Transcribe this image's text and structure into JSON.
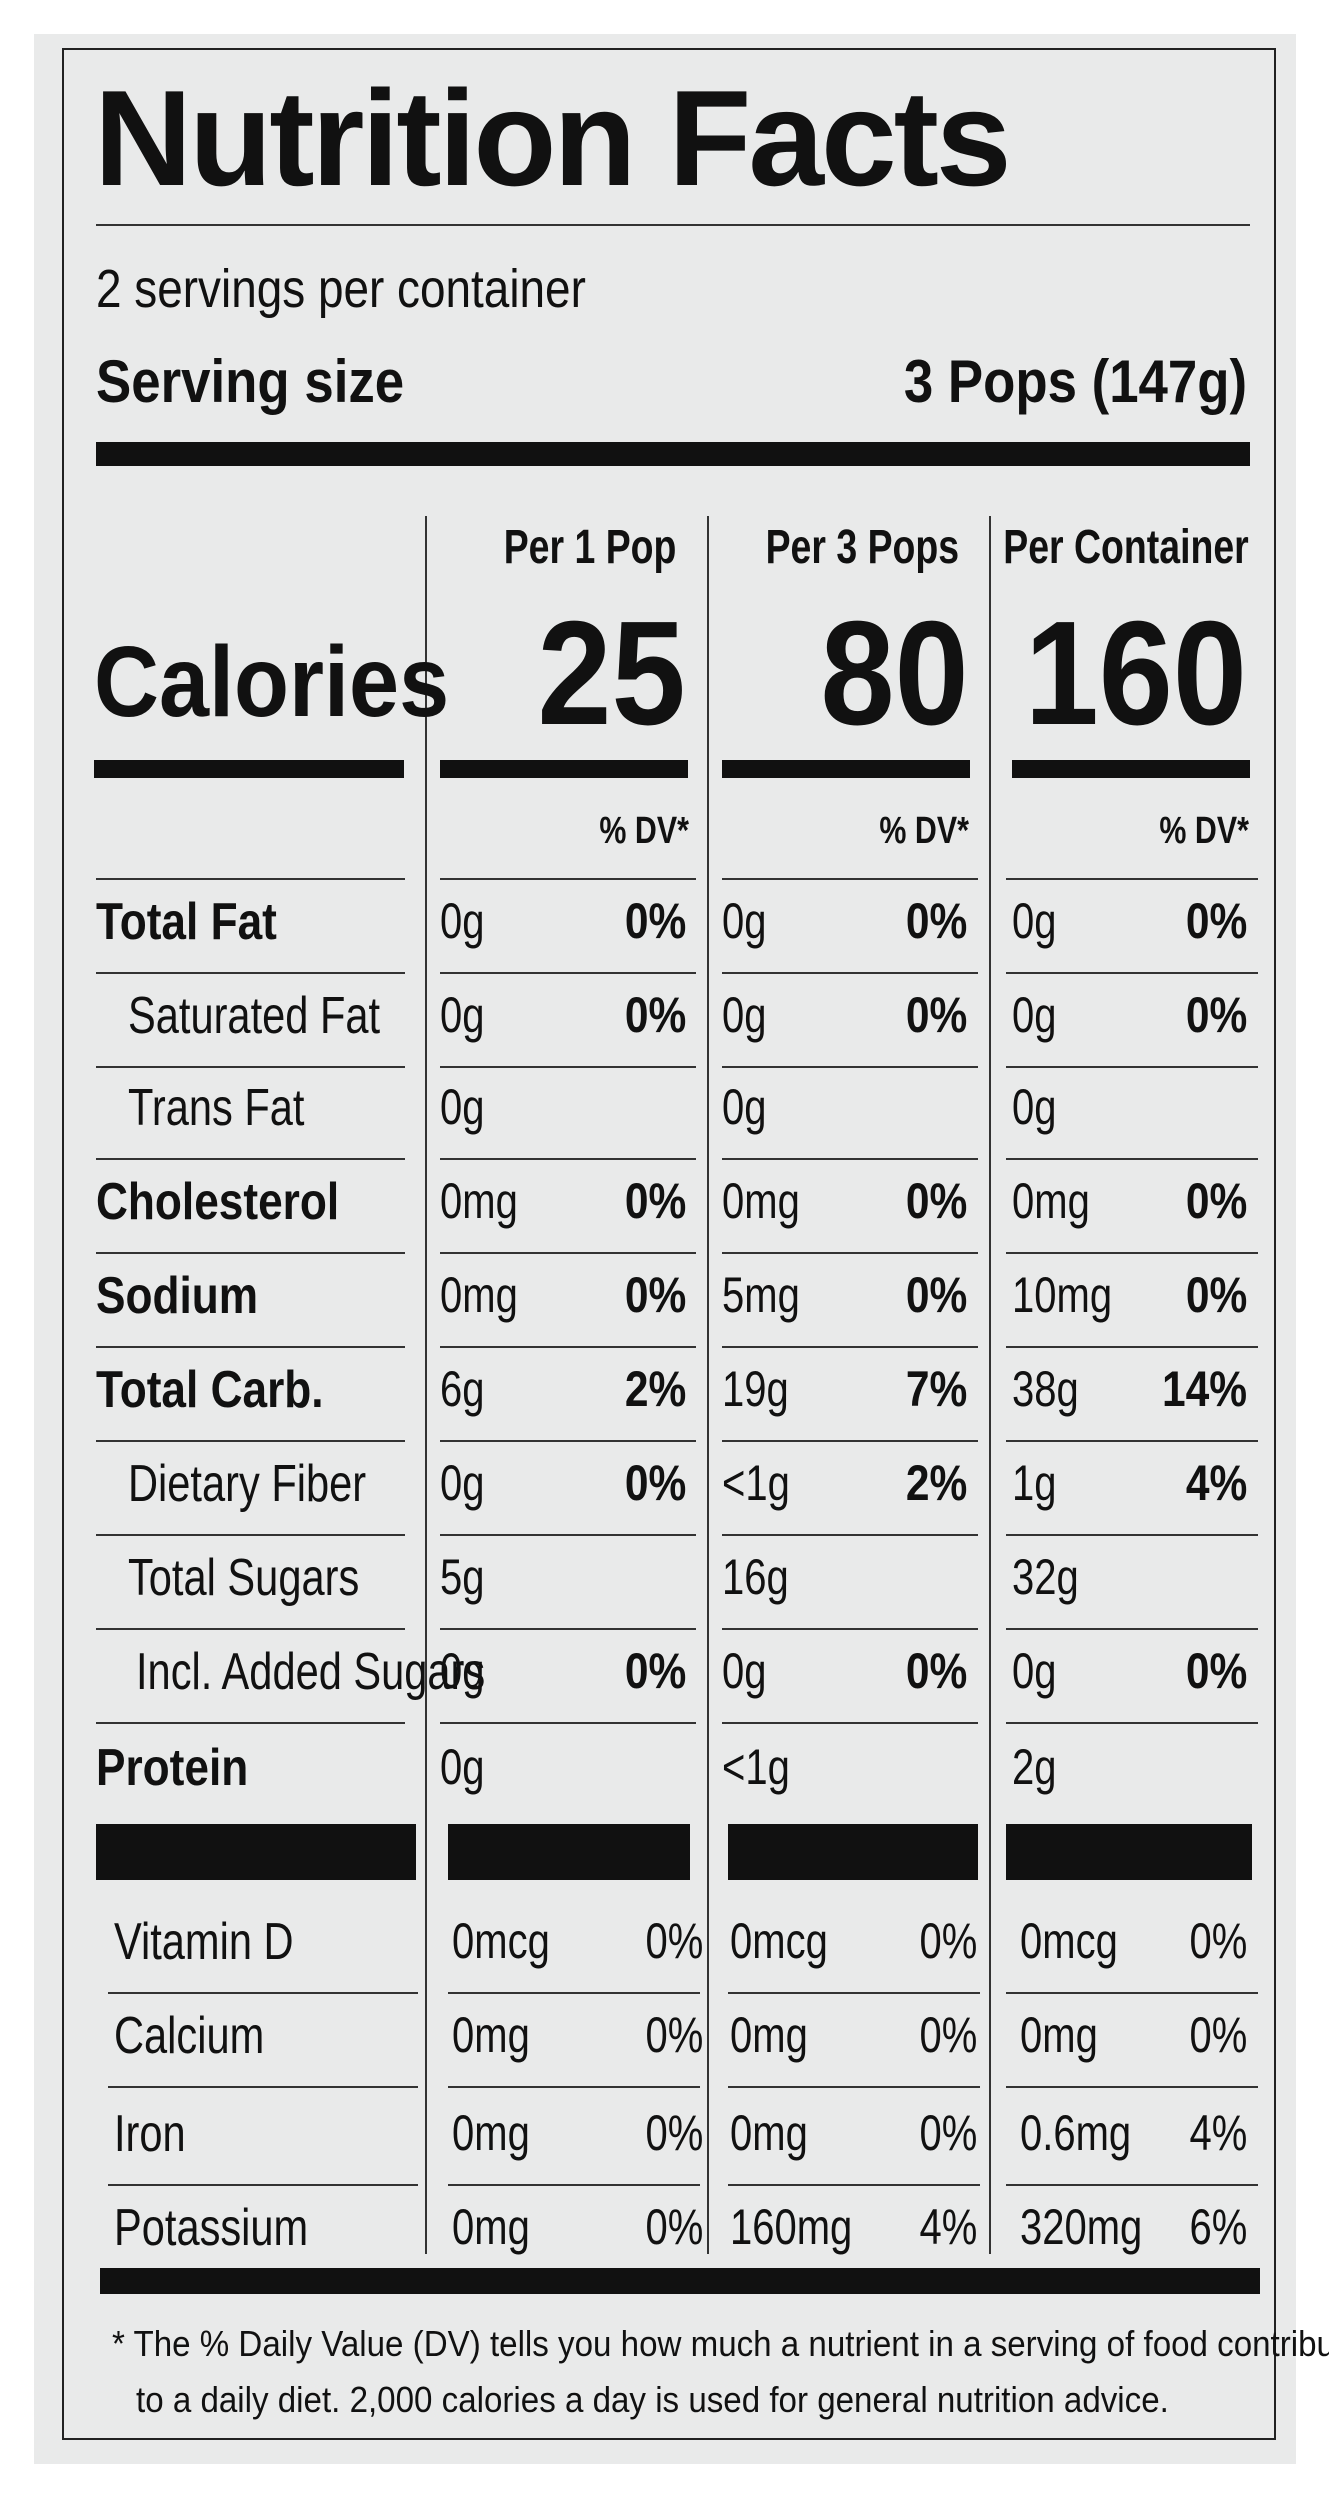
{
  "title": "Nutrition Facts",
  "servings_per_container": "2 servings per container",
  "serving_size": {
    "label": "Serving size",
    "value": "3 Pops (147g)"
  },
  "columns": [
    "Per 1 Pop",
    "Per 3 Pops",
    "Per Container"
  ],
  "calories": {
    "label": "Calories",
    "values": [
      "25",
      "80",
      "160"
    ]
  },
  "dv_header": "% DV*",
  "nutrients": [
    {
      "name": "Total Fat",
      "bold": true,
      "indent": 0,
      "values": [
        [
          "0g",
          "0%"
        ],
        [
          "0g",
          "0%"
        ],
        [
          "0g",
          "0%"
        ]
      ]
    },
    {
      "name": "Saturated Fat",
      "bold": false,
      "indent": 1,
      "values": [
        [
          "0g",
          "0%"
        ],
        [
          "0g",
          "0%"
        ],
        [
          "0g",
          "0%"
        ]
      ]
    },
    {
      "name": "Trans Fat",
      "bold": false,
      "indent": 1,
      "values": [
        [
          "0g",
          ""
        ],
        [
          "0g",
          ""
        ],
        [
          "0g",
          ""
        ]
      ]
    },
    {
      "name": "Cholesterol",
      "bold": true,
      "indent": 0,
      "values": [
        [
          "0mg",
          "0%"
        ],
        [
          "0mg",
          "0%"
        ],
        [
          "0mg",
          "0%"
        ]
      ]
    },
    {
      "name": "Sodium",
      "bold": true,
      "indent": 0,
      "values": [
        [
          "0mg",
          "0%"
        ],
        [
          "5mg",
          "0%"
        ],
        [
          "10mg",
          "0%"
        ]
      ]
    },
    {
      "name": "Total Carb.",
      "bold": true,
      "indent": 0,
      "values": [
        [
          "6g",
          "2%"
        ],
        [
          "19g",
          "7%"
        ],
        [
          "38g",
          "14%"
        ]
      ]
    },
    {
      "name": "Dietary Fiber",
      "bold": false,
      "indent": 1,
      "values": [
        [
          "0g",
          "0%"
        ],
        [
          "<1g",
          "2%"
        ],
        [
          "1g",
          "4%"
        ]
      ]
    },
    {
      "name": "Total Sugars",
      "bold": false,
      "indent": 1,
      "values": [
        [
          "5g",
          ""
        ],
        [
          "16g",
          ""
        ],
        [
          "32g",
          ""
        ]
      ]
    },
    {
      "name": "Incl. Added Sugars",
      "bold": false,
      "indent": 2,
      "values": [
        [
          "0g",
          "0%"
        ],
        [
          "0g",
          "0%"
        ],
        [
          "0g",
          "0%"
        ]
      ]
    },
    {
      "name": "Protein",
      "bold": true,
      "indent": 0,
      "values": [
        [
          "0g",
          ""
        ],
        [
          "<1g",
          ""
        ],
        [
          "2g",
          ""
        ]
      ]
    }
  ],
  "vitamins": [
    {
      "name": "Vitamin D",
      "values": [
        [
          "0mcg",
          "0%"
        ],
        [
          "0mcg",
          "0%"
        ],
        [
          "0mcg",
          "0%"
        ]
      ]
    },
    {
      "name": "Calcium",
      "values": [
        [
          "0mg",
          "0%"
        ],
        [
          "0mg",
          "0%"
        ],
        [
          "0mg",
          "0%"
        ]
      ]
    },
    {
      "name": "Iron",
      "values": [
        [
          "0mg",
          "0%"
        ],
        [
          "0mg",
          "0%"
        ],
        [
          "0.6mg",
          "4%"
        ]
      ]
    },
    {
      "name": "Potassium",
      "values": [
        [
          "0mg",
          "0%"
        ],
        [
          "160mg",
          "4%"
        ],
        [
          "320mg",
          "6%"
        ]
      ]
    }
  ],
  "footnote": [
    "* The % Daily Value (DV) tells you how much a nutrient in a serving of food contributes",
    "to a daily diet. 2,000 calories a day is used for general nutrition advice."
  ]
}
